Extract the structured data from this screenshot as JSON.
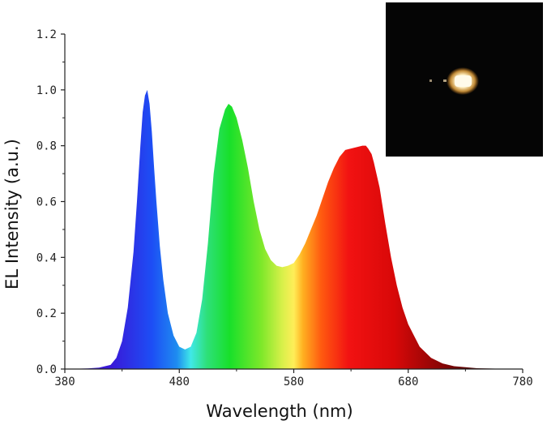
{
  "chart_data": {
    "type": "area",
    "title": "",
    "xlabel": "Wavelength (nm)",
    "ylabel": "EL Intensity (a.u.)",
    "xlim": [
      380,
      780
    ],
    "ylim": [
      0,
      1.2
    ],
    "x_ticks": [
      "380",
      "480",
      "580",
      "680",
      "780"
    ],
    "y_ticks": [
      "0.0",
      "0.2",
      "0.4",
      "0.6",
      "0.8",
      "1.0",
      "1.2"
    ],
    "fill": "visible-spectrum gradient",
    "grid": false,
    "legend": "none",
    "series": [
      {
        "x": [
          380,
          400,
          410,
          420,
          425,
          430,
          435,
          440,
          443,
          446,
          448,
          450,
          452,
          454,
          456,
          458,
          460,
          463,
          466,
          470,
          475,
          480,
          485,
          490,
          495,
          500,
          505,
          510,
          515,
          520,
          523,
          526,
          530,
          535,
          540,
          545,
          550,
          555,
          560,
          565,
          570,
          575,
          580,
          585,
          590,
          595,
          600,
          605,
          610,
          615,
          620,
          625,
          630,
          635,
          640,
          643,
          645,
          648,
          650,
          655,
          660,
          665,
          670,
          675,
          680,
          690,
          700,
          710,
          720,
          740,
          760,
          780
        ],
        "y": [
          0.0,
          0.002,
          0.005,
          0.015,
          0.04,
          0.1,
          0.22,
          0.42,
          0.6,
          0.8,
          0.92,
          0.98,
          1.0,
          0.95,
          0.85,
          0.72,
          0.6,
          0.44,
          0.32,
          0.2,
          0.12,
          0.08,
          0.07,
          0.08,
          0.13,
          0.25,
          0.45,
          0.7,
          0.86,
          0.93,
          0.95,
          0.94,
          0.9,
          0.82,
          0.72,
          0.6,
          0.5,
          0.43,
          0.39,
          0.37,
          0.365,
          0.37,
          0.38,
          0.41,
          0.45,
          0.5,
          0.55,
          0.61,
          0.67,
          0.72,
          0.76,
          0.785,
          0.79,
          0.795,
          0.8,
          0.8,
          0.79,
          0.77,
          0.74,
          0.65,
          0.52,
          0.4,
          0.3,
          0.22,
          0.16,
          0.08,
          0.04,
          0.02,
          0.01,
          0.003,
          0.001,
          0.0
        ]
      }
    ]
  },
  "inset": {
    "content": "photo-of-glowing-device",
    "glow_color": "#fff6d8"
  }
}
